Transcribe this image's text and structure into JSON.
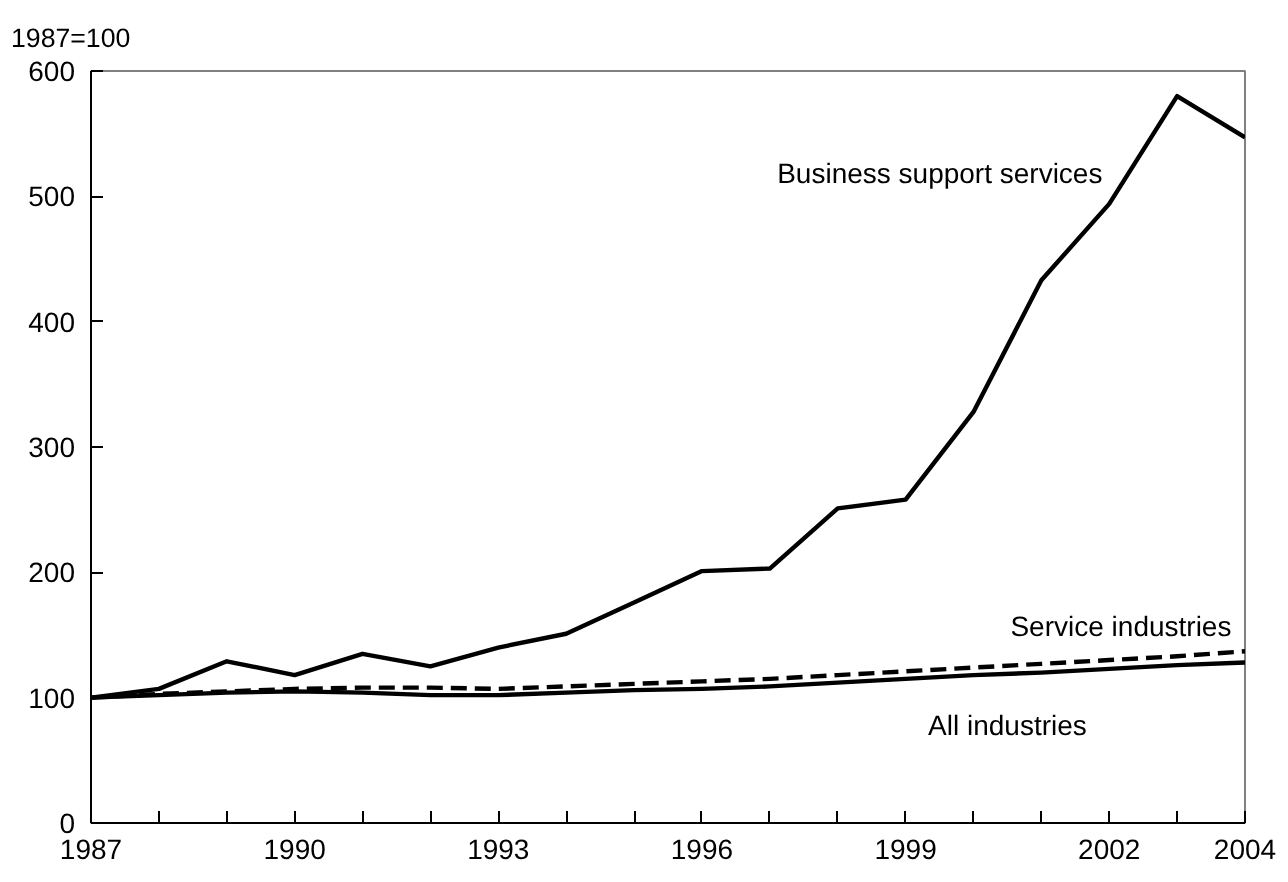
{
  "chart_data": {
    "type": "line",
    "ylabel": "1987=100",
    "x": [
      1987,
      1988,
      1989,
      1990,
      1991,
      1992,
      1993,
      1994,
      1995,
      1996,
      1997,
      1998,
      1999,
      2000,
      2001,
      2002,
      2003,
      2004
    ],
    "series": [
      {
        "name": "Business support services",
        "color": "#000000",
        "line_style": "solid",
        "values": [
          100,
          107,
          129,
          118,
          135,
          125,
          140,
          151,
          176,
          201,
          203,
          251,
          258,
          328,
          433,
          494,
          580,
          547
        ]
      },
      {
        "name": "Service industries",
        "color": "#000000",
        "line_style": "dashed",
        "values": [
          100,
          103,
          105,
          107,
          108,
          108,
          107,
          109,
          111,
          113,
          115,
          118,
          121,
          124,
          127,
          130,
          133,
          137
        ]
      },
      {
        "name": "All industries",
        "color": "#000000",
        "line_style": "solid",
        "values": [
          100,
          102,
          104,
          105,
          104,
          102,
          102,
          104,
          106,
          107,
          109,
          112,
          115,
          118,
          120,
          123,
          126,
          128
        ]
      }
    ],
    "xlim": [
      1987,
      2004
    ],
    "ylim": [
      0,
      600
    ],
    "xticks": [
      1987,
      {
        "value": 1988,
        "label": null
      },
      {
        "value": 1989,
        "label": null
      },
      1990,
      {
        "value": 1991,
        "label": null
      },
      {
        "value": 1992,
        "label": null
      },
      1993,
      {
        "value": 1994,
        "label": null
      },
      {
        "value": 1995,
        "label": null
      },
      1996,
      {
        "value": 1997,
        "label": null
      },
      {
        "value": 1998,
        "label": null
      },
      1999,
      {
        "value": 2000,
        "label": null
      },
      {
        "value": 2001,
        "label": null
      },
      2002,
      {
        "value": 2003,
        "label": null
      },
      2004
    ],
    "yticks": [
      0,
      100,
      200,
      300,
      400,
      500,
      600
    ],
    "grid": false,
    "marker": "none"
  }
}
